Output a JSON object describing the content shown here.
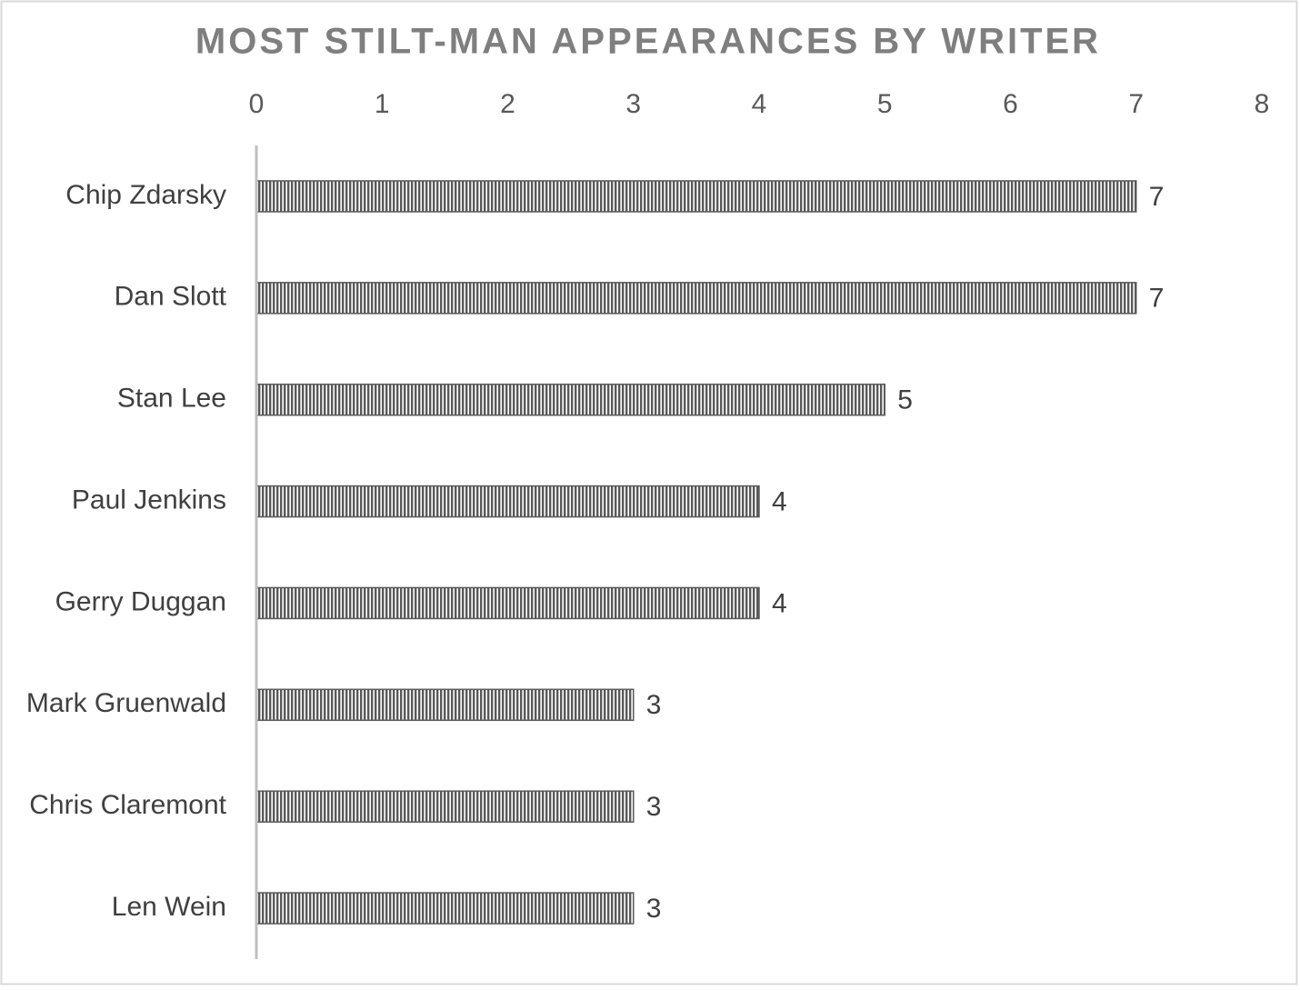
{
  "chart_data": {
    "type": "bar",
    "orientation": "horizontal",
    "title": "MOST STILT-MAN APPEARANCES BY WRITER",
    "categories": [
      "Chip Zdarsky",
      "Dan Slott",
      "Stan Lee",
      "Paul Jenkins",
      "Gerry Duggan",
      "Mark Gruenwald",
      "Chris Claremont",
      "Len Wein"
    ],
    "values": [
      7,
      7,
      5,
      4,
      4,
      3,
      3,
      3
    ],
    "color": "#595959",
    "xlim": [
      0,
      8
    ],
    "xticks": [
      0,
      1,
      2,
      3,
      4,
      5,
      6,
      7,
      8
    ],
    "grid": false,
    "data_labels": true
  }
}
